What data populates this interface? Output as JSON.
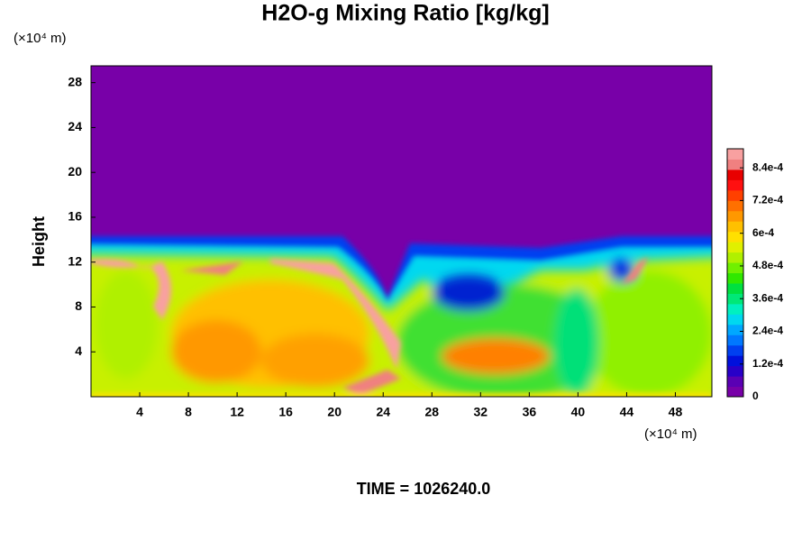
{
  "chart_data": {
    "type": "heatmap",
    "title": "H2O-g Mixing Ratio [kg/kg]",
    "ylabel": "Height",
    "x_unit": "(×10⁴ m)",
    "y_unit": "(×10⁴ m)",
    "footer": "TIME = 1026240.0",
    "xlim": [
      0,
      51
    ],
    "xticks": [
      4,
      8,
      12,
      16,
      20,
      24,
      28,
      32,
      36,
      40,
      44,
      48
    ],
    "ylim": [
      0,
      29.5
    ],
    "yticks": [
      4,
      8,
      12,
      16,
      20,
      24,
      28
    ],
    "clim": [
      0,
      0.00091
    ],
    "cticks": [
      0,
      {
        "value": 0.00012,
        "label": "1.2e-4"
      },
      {
        "value": 0.00024,
        "label": "2.4e-4"
      },
      {
        "value": 0.00036,
        "label": "3.6e-4"
      },
      {
        "value": 0.00048,
        "label": "4.8e-4"
      },
      {
        "value": 0.0006,
        "label": "6e-4"
      },
      {
        "value": 0.00072,
        "label": "7.2e-4"
      },
      {
        "value": 0.00084,
        "label": "8.4e-4"
      }
    ],
    "colors": [
      "#7800a8",
      "#5a00b4",
      "#2800c8",
      "#0010dc",
      "#0040f0",
      "#0078ff",
      "#00a8ff",
      "#00d8f0",
      "#00f0c0",
      "#00e878",
      "#00e040",
      "#30e800",
      "#70f000",
      "#b0f000",
      "#e0f000",
      "#ffe000",
      "#ffc000",
      "#ff9800",
      "#ff7000",
      "#ff4000",
      "#ff1010",
      "#e80000",
      "#f08080",
      "#f8a0a0"
    ]
  }
}
